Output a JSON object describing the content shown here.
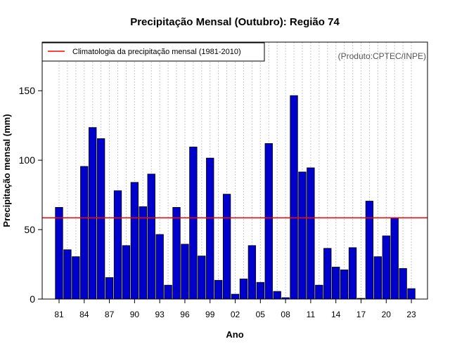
{
  "chart_data": {
    "type": "bar",
    "title": "Precipitação Mensal (Outubro): Região 74",
    "xlabel": "Ano",
    "ylabel": "Precipitação mensal (mm)",
    "credit": "(Produto:CPTEC/INPE)",
    "legend": {
      "label": "Climatologia da precipitação mensal (1981-2010)",
      "position": "top-left"
    },
    "climatology": 58.5,
    "ylim": [
      0,
      185
    ],
    "yticks": [
      0,
      50,
      100,
      150
    ],
    "categories": [
      "1981",
      "1982",
      "1983",
      "1984",
      "1985",
      "1986",
      "1987",
      "1988",
      "1989",
      "1990",
      "1991",
      "1992",
      "1993",
      "1994",
      "1995",
      "1996",
      "1997",
      "1998",
      "1999",
      "2000",
      "2001",
      "2002",
      "2003",
      "2004",
      "2005",
      "2006",
      "2007",
      "2008",
      "2009",
      "2010",
      "2011",
      "2012",
      "2013",
      "2014",
      "2015",
      "2016",
      "2017",
      "2018",
      "2019",
      "2020",
      "2021",
      "2022",
      "2023"
    ],
    "values": [
      66,
      35.5,
      30.5,
      95.5,
      123.5,
      115.5,
      15.5,
      78,
      38.5,
      84,
      66.5,
      90,
      46.5,
      10,
      66,
      39.5,
      109.5,
      31,
      101.5,
      13.5,
      75.5,
      3.5,
      14.5,
      38.5,
      12,
      112,
      5.5,
      1,
      146.5,
      91.5,
      94.5,
      10,
      36.5,
      23,
      21,
      37,
      0.5,
      70.5,
      30.5,
      45.5,
      58.5,
      22,
      7.5
    ],
    "xtick_labels": [
      "81",
      "84",
      "87",
      "90",
      "93",
      "96",
      "99",
      "02",
      "05",
      "08",
      "11",
      "14",
      "17",
      "20",
      "23"
    ],
    "bar_color": "#0000cd",
    "line_color": "#ff0000",
    "grid": true
  }
}
